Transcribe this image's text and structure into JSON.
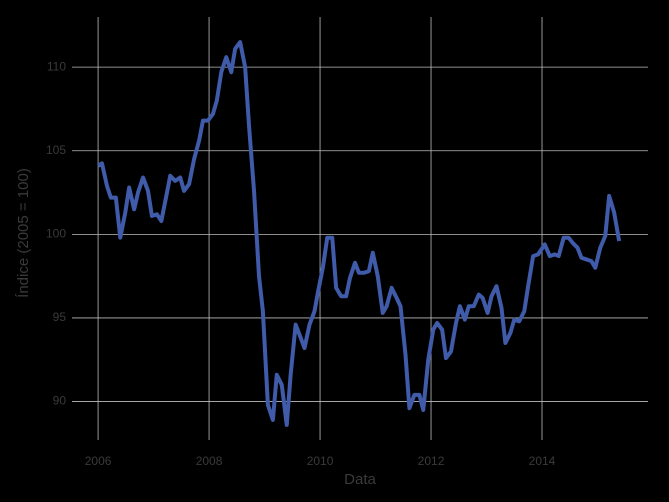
{
  "chart_data": {
    "type": "line",
    "xlabel": "Data",
    "ylabel": "Índice (2005 = 100)",
    "x": [
      2006.0,
      2006.07,
      2006.16,
      2006.23,
      2006.32,
      2006.4,
      2006.49,
      2006.56,
      2006.65,
      2006.72,
      2006.81,
      2006.9,
      2006.97,
      2007.06,
      2007.14,
      2007.23,
      2007.3,
      2007.39,
      2007.48,
      2007.55,
      2007.64,
      2007.73,
      2007.82,
      2007.89,
      2007.98,
      2008.07,
      2008.14,
      2008.22,
      2008.31,
      2008.4,
      2008.47,
      2008.56,
      2008.65,
      2008.72,
      2008.81,
      2008.9,
      2008.97,
      2009.06,
      2009.15,
      2009.22,
      2009.31,
      2009.4,
      2009.47,
      2009.56,
      2009.63,
      2009.72,
      2009.81,
      2009.9,
      2009.96,
      2010.05,
      2010.13,
      2010.22,
      2010.29,
      2010.38,
      2010.47,
      2010.54,
      2010.63,
      2010.7,
      2010.79,
      2010.88,
      2010.95,
      2011.04,
      2011.13,
      2011.2,
      2011.29,
      2011.38,
      2011.45,
      2011.54,
      2011.61,
      2011.7,
      2011.79,
      2011.86,
      2011.95,
      2012.04,
      2012.11,
      2012.2,
      2012.27,
      2012.36,
      2012.45,
      2012.52,
      2012.61,
      2012.68,
      2012.77,
      2012.86,
      2012.93,
      2013.02,
      2013.09,
      2013.18,
      2013.27,
      2013.34,
      2013.43,
      2013.5,
      2013.59,
      2013.68,
      2013.75,
      2013.84,
      2013.93,
      2014.05,
      2014.14,
      2014.23,
      2014.3,
      2014.39,
      2014.48,
      2014.55,
      2014.64,
      2014.71,
      2014.8,
      2014.89,
      2014.96,
      2015.05,
      2015.14,
      2015.21,
      2015.3,
      2015.39
    ],
    "series": [
      {
        "color": "#3f5ba9",
        "values": [
          104.1,
          104.25,
          102.9,
          102.2,
          102.2,
          99.8,
          101.3,
          102.8,
          101.5,
          102.5,
          103.4,
          102.6,
          101.1,
          101.2,
          100.8,
          102.3,
          103.5,
          103.2,
          103.4,
          102.6,
          103.0,
          104.5,
          105.6,
          106.8,
          106.8,
          107.2,
          108.0,
          109.7,
          110.6,
          109.7,
          111.1,
          111.5,
          110.0,
          106.5,
          102.6,
          97.5,
          95.4,
          89.8,
          88.9,
          91.6,
          91.0,
          88.6,
          91.6,
          94.6,
          94.0,
          93.2,
          94.6,
          95.4,
          96.5,
          98.0,
          99.8,
          99.8,
          96.8,
          96.3,
          96.3,
          97.4,
          98.3,
          97.7,
          97.7,
          97.8,
          98.9,
          97.5,
          95.3,
          95.7,
          96.8,
          96.2,
          95.7,
          92.8,
          89.6,
          90.4,
          90.4,
          89.5,
          92.5,
          94.3,
          94.7,
          94.3,
          92.6,
          93.0,
          94.7,
          95.7,
          94.9,
          95.7,
          95.7,
          96.4,
          96.2,
          95.3,
          96.3,
          96.9,
          95.6,
          93.5,
          94.1,
          94.9,
          94.8,
          95.4,
          96.9,
          98.7,
          98.8,
          99.4,
          98.7,
          98.8,
          98.7,
          99.8,
          99.8,
          99.5,
          99.2,
          98.6,
          98.5,
          98.4,
          98.0,
          99.2,
          99.9,
          102.3,
          101.3,
          99.6
        ]
      }
    ],
    "xlim": [
      2005.53,
      2015.91
    ],
    "xticks": [
      2006,
      2008,
      2010,
      2012,
      2014
    ],
    "ylim": [
      87.7,
      113
    ],
    "yticks": [
      90,
      95,
      100,
      105,
      110
    ],
    "grid": true
  }
}
